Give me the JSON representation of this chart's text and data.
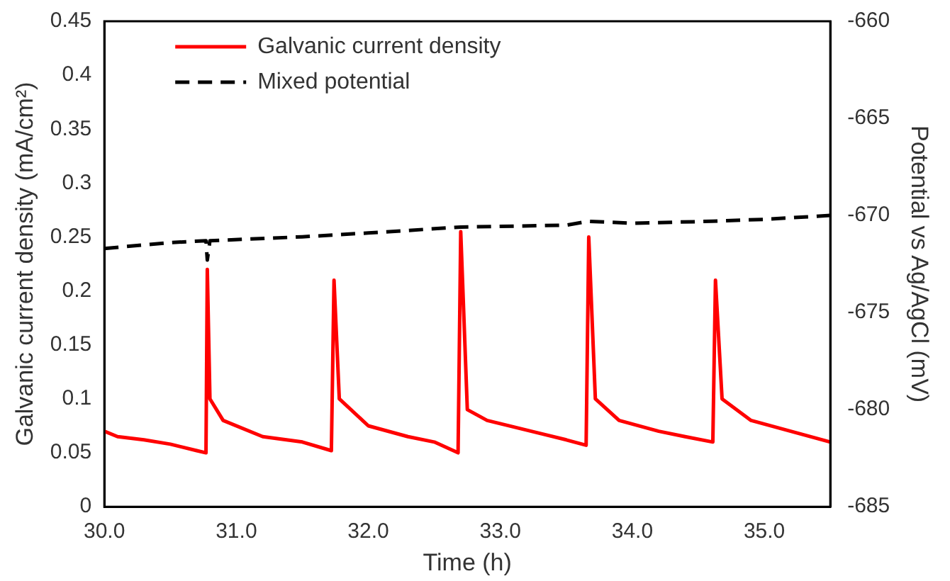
{
  "chart_data": {
    "type": "line",
    "xlabel": "Time (h)",
    "ylabel": "Galvanic current density (mA/cm²)",
    "y2label": "Potential vs Ag/AgCl (mV)",
    "xlim": [
      30,
      35.5
    ],
    "xticks": [
      {
        "value": 30,
        "label": "30.0"
      },
      {
        "value": 31,
        "label": "31.0"
      },
      {
        "value": 32,
        "label": "32.0"
      },
      {
        "value": 33,
        "label": "33.0"
      },
      {
        "value": 34,
        "label": "34.0"
      },
      {
        "value": 35,
        "label": "35.0"
      }
    ],
    "ylim": [
      0,
      0.45
    ],
    "yticks": [
      0,
      0.05,
      0.1,
      0.15,
      0.2,
      0.25,
      0.3,
      0.35,
      0.4,
      0.45
    ],
    "y2lim": [
      -685,
      -660
    ],
    "y2ticks": [
      -685,
      -680,
      -675,
      -670,
      -665,
      -660
    ],
    "grid": false,
    "legend": "top left",
    "marker": "none",
    "series": [
      {
        "name": "Galvanic current density",
        "color": "#ff0000",
        "line_style": "solid",
        "x": [
          30.0,
          30.1,
          30.3,
          30.5,
          30.7,
          30.77,
          30.78,
          30.8,
          30.9,
          31.2,
          31.5,
          31.72,
          31.74,
          31.78,
          32.0,
          32.3,
          32.5,
          32.68,
          32.7,
          32.75,
          32.9,
          33.3,
          33.5,
          33.65,
          33.67,
          33.72,
          33.9,
          34.2,
          34.4,
          34.61,
          34.63,
          34.68,
          34.9,
          35.2,
          35.5
        ],
        "values": [
          0.07,
          0.065,
          0.062,
          0.058,
          0.052,
          0.05,
          0.22,
          0.1,
          0.08,
          0.065,
          0.06,
          0.052,
          0.21,
          0.1,
          0.075,
          0.065,
          0.06,
          0.05,
          0.255,
          0.09,
          0.08,
          0.068,
          0.062,
          0.057,
          0.25,
          0.1,
          0.08,
          0.07,
          0.065,
          0.06,
          0.21,
          0.1,
          0.08,
          0.07,
          0.06
        ]
      },
      {
        "name": "Mixed potential",
        "color": "#000000",
        "line_style": "dashed",
        "axis": "y2",
        "x": [
          30.0,
          30.5,
          30.77,
          30.78,
          30.8,
          31.5,
          32.0,
          32.7,
          33.5,
          33.67,
          34.0,
          34.6,
          35.0,
          35.5
        ],
        "values": [
          -671.7,
          -671.4,
          -671.3,
          -672.3,
          -671.3,
          -671.1,
          -670.9,
          -670.6,
          -670.5,
          -670.3,
          -670.4,
          -670.3,
          -670.2,
          -670.0
        ]
      }
    ]
  }
}
